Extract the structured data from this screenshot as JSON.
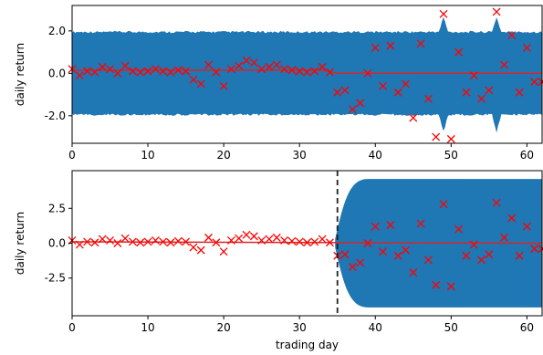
{
  "colors": {
    "band": "#1f77b4",
    "data": "#ff0000",
    "mean": "#d62728",
    "vline": "#222222"
  },
  "chart_data": [
    {
      "type": "area",
      "title": "",
      "xlabel": "",
      "ylabel": "daily return",
      "xlim": [
        0,
        62
      ],
      "ylim": [
        -3.3,
        3.2
      ],
      "x_ticks": [
        0,
        10,
        20,
        30,
        40,
        50,
        60
      ],
      "y_ticks": [
        2.0,
        0.0,
        -2.0
      ],
      "y_tick_labels": [
        "2.0",
        "0.0",
        "-2.0"
      ],
      "grid": false,
      "mean": {
        "x": [
          0,
          33,
          35,
          62
        ],
        "y": [
          0.15,
          0.15,
          0.0,
          0.0
        ]
      },
      "band": {
        "upper": 1.9,
        "lower": -1.9,
        "jitter": 0.1,
        "spikes_x": [
          49,
          56
        ]
      },
      "points": {
        "x": [
          0,
          1,
          2,
          3,
          4,
          5,
          6,
          7,
          8,
          9,
          10,
          11,
          12,
          13,
          14,
          15,
          16,
          17,
          18,
          19,
          20,
          21,
          22,
          23,
          24,
          25,
          26,
          27,
          28,
          29,
          30,
          31,
          32,
          33,
          34,
          35,
          36,
          37,
          38,
          39,
          40,
          41,
          42,
          43,
          44,
          45,
          46,
          47,
          48,
          49,
          50,
          51,
          52,
          53,
          54,
          55,
          56,
          57,
          58,
          59,
          60,
          61,
          62
        ],
        "y": [
          0.2,
          -0.1,
          0.1,
          0.05,
          0.3,
          0.2,
          0.0,
          0.35,
          0.1,
          0.05,
          0.1,
          0.2,
          0.1,
          0.05,
          0.15,
          0.1,
          -0.3,
          -0.5,
          0.4,
          0.05,
          -0.6,
          0.2,
          0.35,
          0.6,
          0.5,
          0.2,
          0.3,
          0.4,
          0.2,
          0.15,
          0.1,
          0.05,
          0.1,
          0.3,
          0.05,
          -0.9,
          -0.8,
          -1.7,
          -1.4,
          0.0,
          1.2,
          -0.6,
          1.3,
          -0.9,
          -0.5,
          -2.1,
          1.4,
          -1.2,
          -3.0,
          2.8,
          -3.1,
          1.0,
          -0.9,
          -0.1,
          -1.2,
          -0.8,
          2.9,
          0.4,
          1.8,
          -0.9,
          1.2,
          -0.4,
          -0.4
        ]
      }
    },
    {
      "type": "area",
      "title": "",
      "xlabel": "trading day",
      "ylabel": "daily return",
      "xlim": [
        0,
        62
      ],
      "ylim": [
        -5.2,
        5.2
      ],
      "x_ticks": [
        0,
        10,
        20,
        30,
        40,
        50,
        60
      ],
      "y_ticks": [
        2.5,
        0.0,
        -2.5
      ],
      "y_tick_labels": [
        "2.5",
        "0.0",
        "-2.5"
      ],
      "grid": false,
      "vline_x": 35,
      "mean": {
        "x": [
          0,
          62
        ],
        "y": [
          0.1,
          0.0
        ]
      },
      "band": {
        "start_x": 34.7,
        "end_x": 62,
        "upper": 4.6,
        "lower": -4.6,
        "start_half_width": 0.3,
        "flare_end_x": 39
      },
      "points": {
        "x": [
          0,
          1,
          2,
          3,
          4,
          5,
          6,
          7,
          8,
          9,
          10,
          11,
          12,
          13,
          14,
          15,
          16,
          17,
          18,
          19,
          20,
          21,
          22,
          23,
          24,
          25,
          26,
          27,
          28,
          29,
          30,
          31,
          32,
          33,
          34,
          35,
          36,
          37,
          38,
          39,
          40,
          41,
          42,
          43,
          44,
          45,
          46,
          47,
          48,
          49,
          50,
          51,
          52,
          53,
          54,
          55,
          56,
          57,
          58,
          59,
          60,
          61,
          62
        ],
        "y": [
          0.2,
          -0.1,
          0.1,
          0.05,
          0.3,
          0.2,
          0.0,
          0.35,
          0.1,
          0.05,
          0.1,
          0.2,
          0.1,
          0.05,
          0.15,
          0.1,
          -0.3,
          -0.5,
          0.4,
          0.05,
          -0.6,
          0.2,
          0.35,
          0.6,
          0.5,
          0.2,
          0.3,
          0.4,
          0.2,
          0.15,
          0.1,
          0.05,
          0.1,
          0.3,
          0.05,
          -0.9,
          -0.8,
          -1.7,
          -1.4,
          0.0,
          1.2,
          -0.6,
          1.3,
          -0.9,
          -0.5,
          -2.1,
          1.4,
          -1.2,
          -3.0,
          2.8,
          -3.1,
          1.0,
          -0.9,
          -0.1,
          -1.2,
          -0.8,
          2.9,
          0.4,
          1.8,
          -0.9,
          1.2,
          -0.4,
          -0.4
        ]
      }
    }
  ]
}
